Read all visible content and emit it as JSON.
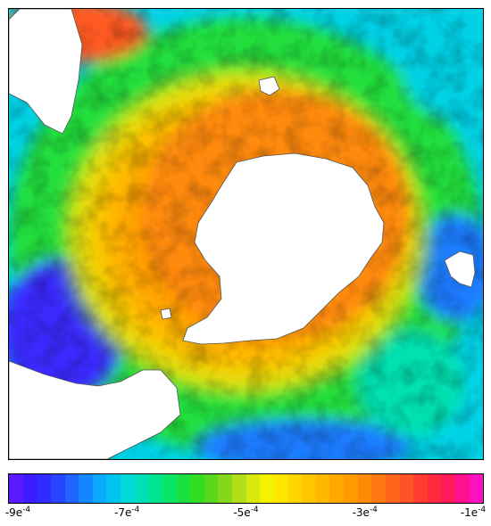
{
  "colorbar": {
    "colors": [
      "#5a1aff",
      "#3b1cff",
      "#2f2bff",
      "#2645ff",
      "#1f64ff",
      "#1486ff",
      "#0aa8ff",
      "#00c3f0",
      "#00d9d8",
      "#00e0b8",
      "#00e38f",
      "#09e467",
      "#17e040",
      "#33de22",
      "#5ad71d",
      "#86d61c",
      "#b0de18",
      "#d7ea0e",
      "#f5f200",
      "#ffe600",
      "#ffd500",
      "#ffc600",
      "#ffb800",
      "#ffa900",
      "#ff9a00",
      "#ff8a08",
      "#ff7812",
      "#ff661c",
      "#ff5226",
      "#ff3e30",
      "#ff2a40",
      "#ff1a5a",
      "#ff1090",
      "#ff10c0"
    ],
    "ticks": [
      {
        "mantissa": "-9e",
        "exp": "-4",
        "pos": 0.0
      },
      {
        "mantissa": "-7e",
        "exp": "-4",
        "pos": 0.25
      },
      {
        "mantissa": "-5e",
        "exp": "-4",
        "pos": 0.5
      },
      {
        "mantissa": "-3e",
        "exp": "-4",
        "pos": 0.75
      },
      {
        "mantissa": "-1e",
        "exp": "-4",
        "pos": 1.0
      }
    ]
  },
  "map_colors": {
    "deep_blue": "#3a2cff",
    "blue": "#1c7cff",
    "cyan": "#00d2e6",
    "teal": "#00e0b0",
    "green": "#22df3c",
    "yellow_green": "#b5e01a",
    "yellow": "#ffe100",
    "orange": "#ffab00",
    "dark_orange": "#ff8a10",
    "red_orange": "#ff5a20",
    "land": "#ffffff",
    "coast": "#555555"
  }
}
